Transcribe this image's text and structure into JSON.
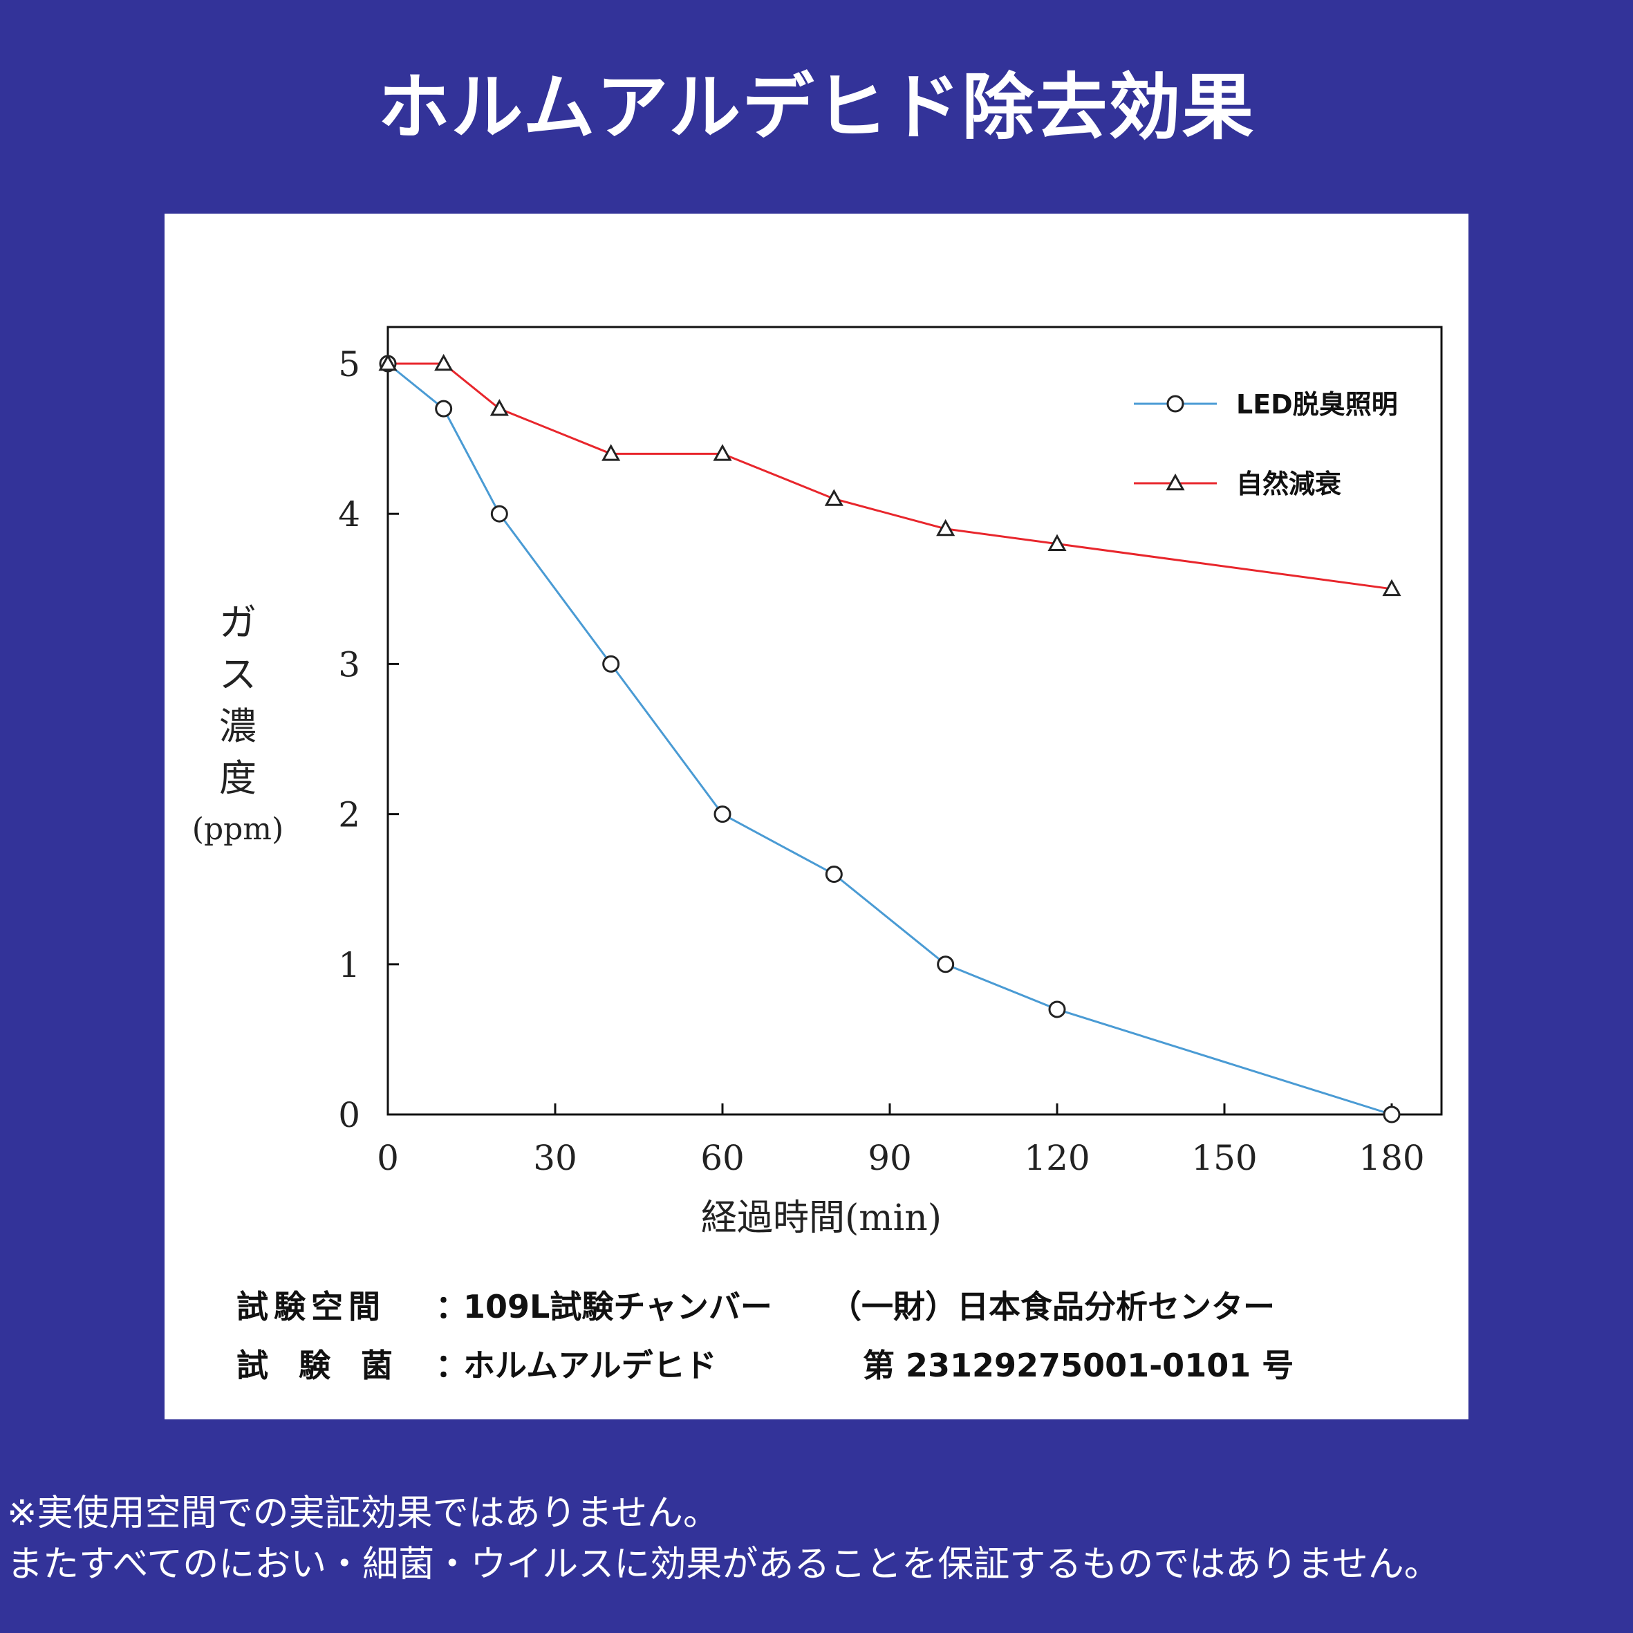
{
  "title": "ホルムアルデヒド除去効果",
  "chart_data": {
    "type": "line",
    "title": "",
    "xlabel": "経過時間(min)",
    "ylabel": [
      "ガ",
      "ス",
      "濃",
      "度",
      "(ppm)"
    ],
    "xlim": [
      0,
      190
    ],
    "ylim": [
      0,
      5.25
    ],
    "xticks": [
      0,
      30,
      60,
      90,
      120,
      150,
      180
    ],
    "yticks": [
      0,
      1,
      2,
      3,
      4,
      5
    ],
    "grid": false,
    "legend_position": "top-right",
    "series": [
      {
        "name": "LED脱臭照明",
        "color": "#4a9bd4",
        "marker": "circle",
        "points": [
          [
            0,
            5
          ],
          [
            10,
            4.7
          ],
          [
            20,
            4
          ],
          [
            40,
            3
          ],
          [
            60,
            2
          ],
          [
            80,
            1.6
          ],
          [
            100,
            1
          ],
          [
            120,
            0.7
          ],
          [
            180,
            0
          ]
        ]
      },
      {
        "name": "自然減衰",
        "color": "#e8262c",
        "marker": "triangle",
        "points": [
          [
            0,
            5
          ],
          [
            10,
            5
          ],
          [
            20,
            4.7
          ],
          [
            40,
            4.4
          ],
          [
            60,
            4.4
          ],
          [
            80,
            4.1
          ],
          [
            100,
            3.9
          ],
          [
            120,
            3.8
          ],
          [
            180,
            3.5
          ]
        ]
      }
    ]
  },
  "info": {
    "row1": {
      "label": "試験空間",
      "colon": "：",
      "value": "109L試験チャンバー",
      "org": "（一財）日本食品分析センター"
    },
    "row2": {
      "label": "試験菌",
      "colon": "：",
      "value": "ホルムアルデヒド",
      "number": "第 23129275001-0101 号"
    }
  },
  "notes": [
    "※実使用空間での実証効果ではありません。",
    "またすべてのにおい・細菌・ウイルスに効果があることを保証するものではありません。"
  ]
}
